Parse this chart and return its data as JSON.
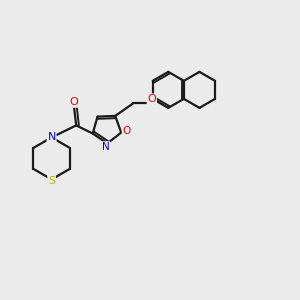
{
  "bg_color": "#ebebeb",
  "bond_color": "#1a1a1a",
  "bond_width": 1.6,
  "atom_colors": {
    "O": "#ee0000",
    "N": "#0000dd",
    "S": "#bbbb00"
  },
  "font_size": 8.0,
  "fig_width": 3.0,
  "fig_height": 3.0,
  "dpi": 100
}
